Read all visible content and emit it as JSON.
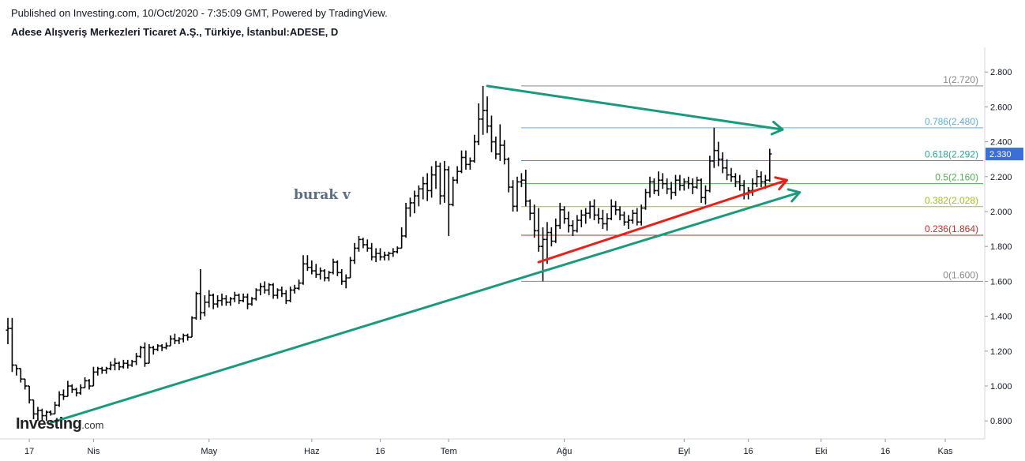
{
  "header": {
    "published": "Published on Investing.com, 10/Oct/2020 - 7:35:09 GMT, Powered by TradingView.",
    "title": "Adese Alışveriş Merkezleri Ticaret A.Ş., Türkiye, İstanbul:ADESE, D"
  },
  "logo": {
    "main": "Investing",
    "suffix": ".com"
  },
  "colors": {
    "bar": "#000000",
    "green_line": "#1a9a7c",
    "red_line": "#e8201a",
    "grid_axis": "#d1d4dc",
    "last_price_bg": "#3a6fd8"
  },
  "chart_data": {
    "type": "ohlc",
    "title": "Adese Alışveriş Merkezleri Ticaret A.Ş., Türkiye, İstanbul:ADESE, D",
    "x_ticks": [
      "17",
      "Nis",
      "May",
      "Haz",
      "16",
      "Tem",
      "Ağu",
      "Eyl",
      "16",
      "Eki",
      "16",
      "Kas"
    ],
    "y_ticks": [
      "0.800",
      "1.000",
      "1.200",
      "1.400",
      "1.600",
      "1.800",
      "2.000",
      "2.200",
      "2.400",
      "2.600",
      "2.800"
    ],
    "ylim": [
      0.66,
      2.91
    ],
    "last_price": "2.330",
    "annotation": "burak v",
    "fib_levels": [
      {
        "ratio": 1,
        "value": 2.72,
        "label": "1(2.720)",
        "color": "#888888"
      },
      {
        "ratio": 0.786,
        "value": 2.48,
        "label": "0.786(2.480)",
        "color": "#5ab0d6"
      },
      {
        "ratio": 0.618,
        "value": 2.292,
        "label": "0.618(2.292)",
        "color": "#26a69a"
      },
      {
        "ratio": 0.5,
        "value": 2.16,
        "label": "0.5(2.160)",
        "color": "#4caf50"
      },
      {
        "ratio": 0.382,
        "value": 2.028,
        "label": "0.382(2.028)",
        "color": "#9fc11c"
      },
      {
        "ratio": 0.236,
        "value": 1.864,
        "label": "0.236(1.864)",
        "color": "#c62828"
      },
      {
        "ratio": 0,
        "value": 1.6,
        "label": "0(1.600)",
        "color": "#888888"
      }
    ],
    "ohlc": [
      {
        "o": 1.32,
        "h": 1.39,
        "l": 1.24,
        "c": 1.33
      },
      {
        "o": 1.33,
        "h": 1.39,
        "l": 1.08,
        "c": 1.12
      },
      {
        "o": 1.12,
        "h": 1.12,
        "l": 1.06,
        "c": 1.1
      },
      {
        "o": 1.1,
        "h": 1.1,
        "l": 1.02,
        "c": 1.04
      },
      {
        "o": 1.04,
        "h": 1.04,
        "l": 0.98,
        "c": 1.0
      },
      {
        "o": 1.0,
        "h": 1.0,
        "l": 0.9,
        "c": 0.92
      },
      {
        "o": 0.92,
        "h": 0.92,
        "l": 0.81,
        "c": 0.84
      },
      {
        "o": 0.84,
        "h": 0.88,
        "l": 0.8,
        "c": 0.86
      },
      {
        "o": 0.86,
        "h": 0.87,
        "l": 0.8,
        "c": 0.83
      },
      {
        "o": 0.83,
        "h": 0.86,
        "l": 0.8,
        "c": 0.85
      },
      {
        "o": 0.85,
        "h": 0.86,
        "l": 0.83,
        "c": 0.84
      },
      {
        "o": 0.84,
        "h": 0.91,
        "l": 0.84,
        "c": 0.89
      },
      {
        "o": 0.89,
        "h": 0.97,
        "l": 0.88,
        "c": 0.95
      },
      {
        "o": 0.95,
        "h": 0.98,
        "l": 0.92,
        "c": 0.94
      },
      {
        "o": 0.94,
        "h": 1.03,
        "l": 0.94,
        "c": 1.0
      },
      {
        "o": 1.0,
        "h": 1.01,
        "l": 0.96,
        "c": 0.98
      },
      {
        "o": 0.98,
        "h": 0.99,
        "l": 0.94,
        "c": 0.96
      },
      {
        "o": 0.96,
        "h": 1.01,
        "l": 0.95,
        "c": 0.99
      },
      {
        "o": 0.99,
        "h": 1.05,
        "l": 0.99,
        "c": 1.03
      },
      {
        "o": 1.03,
        "h": 1.04,
        "l": 0.98,
        "c": 1.0
      },
      {
        "o": 1.0,
        "h": 1.11,
        "l": 1.0,
        "c": 1.08
      },
      {
        "o": 1.08,
        "h": 1.11,
        "l": 1.06,
        "c": 1.1
      },
      {
        "o": 1.1,
        "h": 1.11,
        "l": 1.07,
        "c": 1.09
      },
      {
        "o": 1.09,
        "h": 1.11,
        "l": 1.07,
        "c": 1.1
      },
      {
        "o": 1.1,
        "h": 1.14,
        "l": 1.09,
        "c": 1.12
      },
      {
        "o": 1.12,
        "h": 1.16,
        "l": 1.09,
        "c": 1.13
      },
      {
        "o": 1.13,
        "h": 1.14,
        "l": 1.09,
        "c": 1.11
      },
      {
        "o": 1.11,
        "h": 1.15,
        "l": 1.1,
        "c": 1.13
      },
      {
        "o": 1.13,
        "h": 1.15,
        "l": 1.1,
        "c": 1.12
      },
      {
        "o": 1.12,
        "h": 1.15,
        "l": 1.11,
        "c": 1.14
      },
      {
        "o": 1.14,
        "h": 1.19,
        "l": 1.12,
        "c": 1.17
      },
      {
        "o": 1.17,
        "h": 1.23,
        "l": 1.16,
        "c": 1.22
      },
      {
        "o": 1.22,
        "h": 1.25,
        "l": 1.11,
        "c": 1.13
      },
      {
        "o": 1.13,
        "h": 1.24,
        "l": 1.13,
        "c": 1.22
      },
      {
        "o": 1.22,
        "h": 1.23,
        "l": 1.18,
        "c": 1.21
      },
      {
        "o": 1.21,
        "h": 1.24,
        "l": 1.2,
        "c": 1.23
      },
      {
        "o": 1.23,
        "h": 1.24,
        "l": 1.2,
        "c": 1.22
      },
      {
        "o": 1.22,
        "h": 1.25,
        "l": 1.21,
        "c": 1.23
      },
      {
        "o": 1.23,
        "h": 1.29,
        "l": 1.23,
        "c": 1.27
      },
      {
        "o": 1.27,
        "h": 1.3,
        "l": 1.24,
        "c": 1.26
      },
      {
        "o": 1.26,
        "h": 1.28,
        "l": 1.24,
        "c": 1.27
      },
      {
        "o": 1.27,
        "h": 1.3,
        "l": 1.25,
        "c": 1.29
      },
      {
        "o": 1.29,
        "h": 1.3,
        "l": 1.26,
        "c": 1.28
      },
      {
        "o": 1.28,
        "h": 1.4,
        "l": 1.28,
        "c": 1.39
      },
      {
        "o": 1.39,
        "h": 1.54,
        "l": 1.38,
        "c": 1.53
      },
      {
        "o": 1.53,
        "h": 1.67,
        "l": 1.38,
        "c": 1.42
      },
      {
        "o": 1.42,
        "h": 1.52,
        "l": 1.4,
        "c": 1.48
      },
      {
        "o": 1.48,
        "h": 1.55,
        "l": 1.45,
        "c": 1.52
      },
      {
        "o": 1.52,
        "h": 1.53,
        "l": 1.44,
        "c": 1.47
      },
      {
        "o": 1.47,
        "h": 1.52,
        "l": 1.45,
        "c": 1.49
      },
      {
        "o": 1.49,
        "h": 1.53,
        "l": 1.46,
        "c": 1.5
      },
      {
        "o": 1.5,
        "h": 1.52,
        "l": 1.46,
        "c": 1.48
      },
      {
        "o": 1.48,
        "h": 1.51,
        "l": 1.46,
        "c": 1.5
      },
      {
        "o": 1.5,
        "h": 1.54,
        "l": 1.48,
        "c": 1.52
      },
      {
        "o": 1.52,
        "h": 1.53,
        "l": 1.47,
        "c": 1.49
      },
      {
        "o": 1.49,
        "h": 1.53,
        "l": 1.48,
        "c": 1.51
      },
      {
        "o": 1.51,
        "h": 1.53,
        "l": 1.44,
        "c": 1.47
      },
      {
        "o": 1.47,
        "h": 1.51,
        "l": 1.46,
        "c": 1.5
      },
      {
        "o": 1.5,
        "h": 1.56,
        "l": 1.49,
        "c": 1.55
      },
      {
        "o": 1.55,
        "h": 1.59,
        "l": 1.52,
        "c": 1.57
      },
      {
        "o": 1.57,
        "h": 1.6,
        "l": 1.53,
        "c": 1.55
      },
      {
        "o": 1.55,
        "h": 1.59,
        "l": 1.52,
        "c": 1.58
      },
      {
        "o": 1.58,
        "h": 1.59,
        "l": 1.5,
        "c": 1.52
      },
      {
        "o": 1.52,
        "h": 1.56,
        "l": 1.5,
        "c": 1.55
      },
      {
        "o": 1.55,
        "h": 1.57,
        "l": 1.51,
        "c": 1.53
      },
      {
        "o": 1.53,
        "h": 1.55,
        "l": 1.47,
        "c": 1.49
      },
      {
        "o": 1.49,
        "h": 1.57,
        "l": 1.48,
        "c": 1.55
      },
      {
        "o": 1.55,
        "h": 1.58,
        "l": 1.53,
        "c": 1.56
      },
      {
        "o": 1.56,
        "h": 1.61,
        "l": 1.55,
        "c": 1.59
      },
      {
        "o": 1.59,
        "h": 1.75,
        "l": 1.58,
        "c": 1.7
      },
      {
        "o": 1.7,
        "h": 1.75,
        "l": 1.66,
        "c": 1.68
      },
      {
        "o": 1.68,
        "h": 1.72,
        "l": 1.64,
        "c": 1.66
      },
      {
        "o": 1.66,
        "h": 1.7,
        "l": 1.62,
        "c": 1.64
      },
      {
        "o": 1.64,
        "h": 1.68,
        "l": 1.61,
        "c": 1.66
      },
      {
        "o": 1.66,
        "h": 1.67,
        "l": 1.6,
        "c": 1.62
      },
      {
        "o": 1.62,
        "h": 1.66,
        "l": 1.6,
        "c": 1.65
      },
      {
        "o": 1.65,
        "h": 1.73,
        "l": 1.64,
        "c": 1.71
      },
      {
        "o": 1.71,
        "h": 1.72,
        "l": 1.63,
        "c": 1.65
      },
      {
        "o": 1.65,
        "h": 1.67,
        "l": 1.58,
        "c": 1.6
      },
      {
        "o": 1.6,
        "h": 1.64,
        "l": 1.56,
        "c": 1.62
      },
      {
        "o": 1.62,
        "h": 1.74,
        "l": 1.62,
        "c": 1.72
      },
      {
        "o": 1.72,
        "h": 1.82,
        "l": 1.7,
        "c": 1.79
      },
      {
        "o": 1.79,
        "h": 1.86,
        "l": 1.77,
        "c": 1.84
      },
      {
        "o": 1.84,
        "h": 1.85,
        "l": 1.79,
        "c": 1.81
      },
      {
        "o": 1.81,
        "h": 1.84,
        "l": 1.77,
        "c": 1.79
      },
      {
        "o": 1.79,
        "h": 1.82,
        "l": 1.72,
        "c": 1.74
      },
      {
        "o": 1.74,
        "h": 1.79,
        "l": 1.71,
        "c": 1.76
      },
      {
        "o": 1.76,
        "h": 1.79,
        "l": 1.72,
        "c": 1.74
      },
      {
        "o": 1.74,
        "h": 1.77,
        "l": 1.72,
        "c": 1.75
      },
      {
        "o": 1.75,
        "h": 1.77,
        "l": 1.72,
        "c": 1.76
      },
      {
        "o": 1.76,
        "h": 1.79,
        "l": 1.74,
        "c": 1.77
      },
      {
        "o": 1.77,
        "h": 1.8,
        "l": 1.76,
        "c": 1.79
      },
      {
        "o": 1.79,
        "h": 1.91,
        "l": 1.79,
        "c": 1.86
      },
      {
        "o": 1.86,
        "h": 2.05,
        "l": 1.85,
        "c": 2.02
      },
      {
        "o": 2.02,
        "h": 2.08,
        "l": 1.97,
        "c": 2.05
      },
      {
        "o": 2.05,
        "h": 2.12,
        "l": 1.99,
        "c": 2.09
      },
      {
        "o": 2.09,
        "h": 2.15,
        "l": 2.03,
        "c": 2.13
      },
      {
        "o": 2.13,
        "h": 2.2,
        "l": 2.07,
        "c": 2.16
      },
      {
        "o": 2.16,
        "h": 2.22,
        "l": 2.06,
        "c": 2.12
      },
      {
        "o": 2.12,
        "h": 2.26,
        "l": 2.08,
        "c": 2.21
      },
      {
        "o": 2.21,
        "h": 2.29,
        "l": 2.13,
        "c": 2.26
      },
      {
        "o": 2.26,
        "h": 2.28,
        "l": 2.04,
        "c": 2.09
      },
      {
        "o": 2.09,
        "h": 2.29,
        "l": 2.05,
        "c": 2.24
      },
      {
        "o": 2.24,
        "h": 2.26,
        "l": 1.86,
        "c": 2.04
      },
      {
        "o": 2.04,
        "h": 2.2,
        "l": 2.03,
        "c": 2.18
      },
      {
        "o": 2.18,
        "h": 2.26,
        "l": 2.16,
        "c": 2.23
      },
      {
        "o": 2.23,
        "h": 2.35,
        "l": 2.22,
        "c": 2.31
      },
      {
        "o": 2.31,
        "h": 2.35,
        "l": 2.24,
        "c": 2.27
      },
      {
        "o": 2.27,
        "h": 2.31,
        "l": 2.24,
        "c": 2.29
      },
      {
        "o": 2.29,
        "h": 2.44,
        "l": 2.28,
        "c": 2.4
      },
      {
        "o": 2.4,
        "h": 2.62,
        "l": 2.38,
        "c": 2.53
      },
      {
        "o": 2.53,
        "h": 2.72,
        "l": 2.44,
        "c": 2.58
      },
      {
        "o": 2.58,
        "h": 2.66,
        "l": 2.45,
        "c": 2.49
      },
      {
        "o": 2.49,
        "h": 2.55,
        "l": 2.34,
        "c": 2.4
      },
      {
        "o": 2.4,
        "h": 2.43,
        "l": 2.3,
        "c": 2.33
      },
      {
        "o": 2.33,
        "h": 2.5,
        "l": 2.29,
        "c": 2.38
      },
      {
        "o": 2.38,
        "h": 2.41,
        "l": 2.27,
        "c": 2.3
      },
      {
        "o": 2.3,
        "h": 2.31,
        "l": 2.11,
        "c": 2.14
      },
      {
        "o": 2.14,
        "h": 2.18,
        "l": 2.0,
        "c": 2.03
      },
      {
        "o": 2.03,
        "h": 2.2,
        "l": 2.0,
        "c": 2.17
      },
      {
        "o": 2.17,
        "h": 2.22,
        "l": 2.14,
        "c": 2.18
      },
      {
        "o": 2.18,
        "h": 2.24,
        "l": 2.03,
        "c": 2.06
      },
      {
        "o": 2.06,
        "h": 2.07,
        "l": 1.95,
        "c": 1.99
      },
      {
        "o": 1.99,
        "h": 2.04,
        "l": 1.85,
        "c": 1.89
      },
      {
        "o": 1.89,
        "h": 2.02,
        "l": 1.77,
        "c": 1.8
      },
      {
        "o": 1.8,
        "h": 1.91,
        "l": 1.6,
        "c": 1.84
      },
      {
        "o": 1.84,
        "h": 1.94,
        "l": 1.7,
        "c": 1.88
      },
      {
        "o": 1.88,
        "h": 1.91,
        "l": 1.8,
        "c": 1.83
      },
      {
        "o": 1.83,
        "h": 1.96,
        "l": 1.82,
        "c": 1.92
      },
      {
        "o": 1.92,
        "h": 2.05,
        "l": 1.9,
        "c": 2.01
      },
      {
        "o": 2.01,
        "h": 2.03,
        "l": 1.93,
        "c": 1.96
      },
      {
        "o": 1.96,
        "h": 2.0,
        "l": 1.88,
        "c": 1.92
      },
      {
        "o": 1.92,
        "h": 1.95,
        "l": 1.86,
        "c": 1.89
      },
      {
        "o": 1.89,
        "h": 1.98,
        "l": 1.88,
        "c": 1.95
      },
      {
        "o": 1.95,
        "h": 2.01,
        "l": 1.91,
        "c": 1.98
      },
      {
        "o": 1.98,
        "h": 2.02,
        "l": 1.93,
        "c": 1.99
      },
      {
        "o": 1.99,
        "h": 2.06,
        "l": 1.96,
        "c": 2.03
      },
      {
        "o": 2.03,
        "h": 2.07,
        "l": 1.95,
        "c": 1.98
      },
      {
        "o": 1.98,
        "h": 2.02,
        "l": 1.93,
        "c": 1.96
      },
      {
        "o": 1.96,
        "h": 2.01,
        "l": 1.9,
        "c": 1.93
      },
      {
        "o": 1.93,
        "h": 1.99,
        "l": 1.89,
        "c": 1.96
      },
      {
        "o": 1.96,
        "h": 2.07,
        "l": 1.95,
        "c": 2.03
      },
      {
        "o": 2.03,
        "h": 2.06,
        "l": 1.98,
        "c": 2.01
      },
      {
        "o": 2.01,
        "h": 2.03,
        "l": 1.95,
        "c": 1.98
      },
      {
        "o": 1.98,
        "h": 2.0,
        "l": 1.92,
        "c": 1.94
      },
      {
        "o": 1.94,
        "h": 1.98,
        "l": 1.9,
        "c": 1.95
      },
      {
        "o": 1.95,
        "h": 2.01,
        "l": 1.93,
        "c": 1.99
      },
      {
        "o": 1.99,
        "h": 2.02,
        "l": 1.92,
        "c": 1.94
      },
      {
        "o": 1.94,
        "h": 2.04,
        "l": 1.92,
        "c": 2.02
      },
      {
        "o": 2.02,
        "h": 2.13,
        "l": 2.01,
        "c": 2.11
      },
      {
        "o": 2.11,
        "h": 2.2,
        "l": 2.08,
        "c": 2.17
      },
      {
        "o": 2.17,
        "h": 2.19,
        "l": 2.1,
        "c": 2.12
      },
      {
        "o": 2.12,
        "h": 2.23,
        "l": 2.09,
        "c": 2.18
      },
      {
        "o": 2.18,
        "h": 2.22,
        "l": 2.13,
        "c": 2.16
      },
      {
        "o": 2.16,
        "h": 2.19,
        "l": 2.1,
        "c": 2.13
      },
      {
        "o": 2.13,
        "h": 2.17,
        "l": 2.07,
        "c": 2.11
      },
      {
        "o": 2.11,
        "h": 2.21,
        "l": 2.09,
        "c": 2.18
      },
      {
        "o": 2.18,
        "h": 2.21,
        "l": 2.12,
        "c": 2.15
      },
      {
        "o": 2.15,
        "h": 2.19,
        "l": 2.12,
        "c": 2.17
      },
      {
        "o": 2.17,
        "h": 2.2,
        "l": 2.13,
        "c": 2.16
      },
      {
        "o": 2.16,
        "h": 2.19,
        "l": 2.1,
        "c": 2.14
      },
      {
        "o": 2.14,
        "h": 2.2,
        "l": 2.13,
        "c": 2.18
      },
      {
        "o": 2.18,
        "h": 2.19,
        "l": 2.05,
        "c": 2.08
      },
      {
        "o": 2.08,
        "h": 2.15,
        "l": 2.04,
        "c": 2.12
      },
      {
        "o": 2.12,
        "h": 2.32,
        "l": 2.11,
        "c": 2.29
      },
      {
        "o": 2.29,
        "h": 2.48,
        "l": 2.25,
        "c": 2.35
      },
      {
        "o": 2.35,
        "h": 2.4,
        "l": 2.26,
        "c": 2.3
      },
      {
        "o": 2.3,
        "h": 2.34,
        "l": 2.22,
        "c": 2.25
      },
      {
        "o": 2.25,
        "h": 2.3,
        "l": 2.18,
        "c": 2.21
      },
      {
        "o": 2.21,
        "h": 2.25,
        "l": 2.17,
        "c": 2.2
      },
      {
        "o": 2.2,
        "h": 2.22,
        "l": 2.14,
        "c": 2.17
      },
      {
        "o": 2.17,
        "h": 2.21,
        "l": 2.12,
        "c": 2.15
      },
      {
        "o": 2.15,
        "h": 2.18,
        "l": 2.07,
        "c": 2.1
      },
      {
        "o": 2.1,
        "h": 2.14,
        "l": 2.07,
        "c": 2.12
      },
      {
        "o": 2.12,
        "h": 2.19,
        "l": 2.09,
        "c": 2.16
      },
      {
        "o": 2.16,
        "h": 2.24,
        "l": 2.14,
        "c": 2.2
      },
      {
        "o": 2.2,
        "h": 2.23,
        "l": 2.14,
        "c": 2.17
      },
      {
        "o": 2.17,
        "h": 2.21,
        "l": 2.13,
        "c": 2.18
      },
      {
        "o": 2.18,
        "h": 2.36,
        "l": 2.17,
        "c": 2.33
      }
    ],
    "trendlines": [
      {
        "name": "upper-resistance",
        "color": "green",
        "from": {
          "bar": 112,
          "price": 2.72
        },
        "to": {
          "bar": 181,
          "price": 2.47
        },
        "points": [
          {
            "bar": 112,
            "price": 2.72
          },
          {
            "bar": 181,
            "price": 2.47
          }
        ]
      },
      {
        "name": "long-support",
        "color": "green",
        "from": {
          "bar": 10,
          "price": 0.79
        },
        "to": {
          "bar": 185,
          "price": 2.11
        }
      },
      {
        "name": "short-support",
        "color": "red",
        "from": {
          "bar": 124,
          "price": 1.71
        },
        "to": {
          "bar": 182,
          "price": 2.18
        }
      }
    ]
  }
}
